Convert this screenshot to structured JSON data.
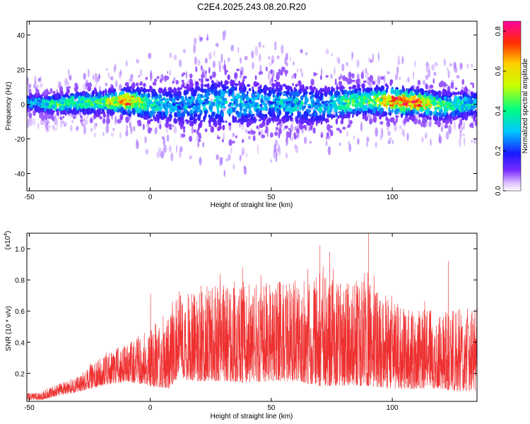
{
  "page_title": "C2E4.2025.243.08.20.R20",
  "colors": {
    "snr_line": "#ee3030",
    "frame": "#000000"
  },
  "chart_data": [
    {
      "type": "heatmap",
      "xlabel": "Height of straight line (km)",
      "ylabel": "Frequency (Hz)",
      "xlim": [
        -51,
        135
      ],
      "ylim": [
        -50,
        48
      ],
      "xticks": [
        -50,
        0,
        50,
        100
      ],
      "xtick_labels": [
        "-50",
        "0",
        "50",
        "100"
      ],
      "yticks": [
        -40,
        -20,
        0,
        20,
        40
      ],
      "ytick_labels": [
        "-40",
        "-20",
        "0",
        "20",
        "40"
      ],
      "colorbar": {
        "label": "Normalized spectral amplitude",
        "range": [
          0,
          0.85
        ],
        "ticks": [
          0.0,
          0.2,
          0.4,
          0.6,
          0.8
        ],
        "tick_labels": [
          "0.0",
          "0.2",
          "0.4",
          "0.6",
          "0.8"
        ]
      },
      "ridge": {
        "x": [
          -51,
          -40,
          -30,
          -20,
          -10,
          0,
          10,
          20,
          30,
          40,
          50,
          60,
          70,
          80,
          90,
          100,
          110,
          120,
          135
        ],
        "center_hz": [
          1,
          0,
          1,
          1,
          2,
          0,
          -1,
          0,
          1,
          0,
          1,
          0,
          -1,
          1,
          2,
          2,
          1,
          -1,
          0
        ],
        "halfwidth_hz": [
          4,
          5,
          6,
          6,
          7,
          9,
          10,
          12,
          13,
          12,
          11,
          11,
          10,
          9,
          8,
          8,
          7,
          8,
          7
        ],
        "peak_amplitude": [
          0.3,
          0.45,
          0.45,
          0.5,
          0.85,
          0.4,
          0.3,
          0.3,
          0.35,
          0.3,
          0.3,
          0.35,
          0.3,
          0.45,
          0.5,
          0.8,
          0.85,
          0.45,
          0.35
        ]
      }
    },
    {
      "type": "line",
      "xlabel": "Height of straight line (km)",
      "ylabel": "SNR (10 * v/v)",
      "y_multiplier": "(x10",
      "y_multiplier_exp": "4",
      "y_multiplier_close": ")",
      "xlim": [
        -51,
        135
      ],
      "ylim": [
        0.02,
        1.1
      ],
      "xticks": [
        -50,
        0,
        50,
        100
      ],
      "xtick_labels": [
        "-50",
        "0",
        "50",
        "100"
      ],
      "yticks": [
        0.2,
        0.4,
        0.6,
        0.8,
        1.0
      ],
      "ytick_labels": [
        "0.2",
        "0.4",
        "0.6",
        "0.8",
        "1.0"
      ],
      "series": [
        {
          "name": "SNR",
          "envelope_x": [
            -51,
            -45,
            -40,
            -30,
            -25,
            -20,
            -10,
            0,
            8,
            10,
            20,
            30,
            40,
            50,
            60,
            70,
            80,
            90,
            100,
            110,
            120,
            130,
            135
          ],
          "baseline": [
            0.03,
            0.03,
            0.05,
            0.08,
            0.1,
            0.12,
            0.15,
            0.12,
            0.1,
            0.16,
            0.15,
            0.15,
            0.14,
            0.15,
            0.15,
            0.12,
            0.12,
            0.12,
            0.1,
            0.1,
            0.1,
            0.08,
            0.08
          ],
          "upper": [
            0.07,
            0.08,
            0.12,
            0.18,
            0.26,
            0.3,
            0.4,
            0.48,
            0.55,
            0.7,
            0.75,
            0.78,
            0.8,
            0.78,
            0.82,
            0.85,
            0.78,
            0.8,
            0.68,
            0.62,
            0.6,
            0.62,
            0.62
          ],
          "spikes": [
            {
              "x": 0,
              "y": 0.71
            },
            {
              "x": 9,
              "y": 0.66
            },
            {
              "x": 38,
              "y": 0.88
            },
            {
              "x": 65,
              "y": 0.87
            },
            {
              "x": 70,
              "y": 1.02
            },
            {
              "x": 74,
              "y": 0.98
            },
            {
              "x": 90,
              "y": 1.1
            },
            {
              "x": 123,
              "y": 0.92
            }
          ]
        }
      ]
    }
  ]
}
